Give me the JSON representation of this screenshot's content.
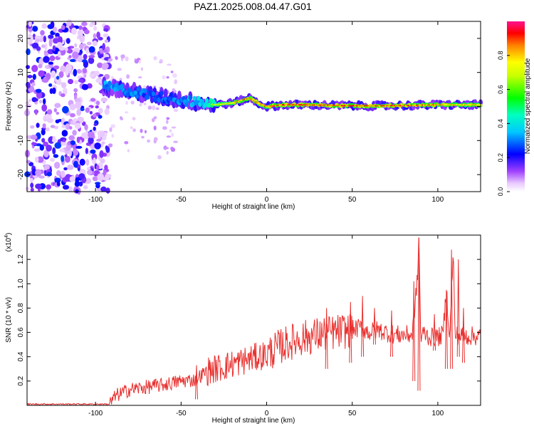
{
  "title": "PAZ1.2025.008.04.47.G01",
  "chart_data": [
    {
      "type": "heatmap",
      "xlabel": "Height of straight line (km)",
      "ylabel": "Frequency (Hz)",
      "xlim": [
        -140,
        125
      ],
      "ylim": [
        -25,
        25
      ],
      "x_ticks": [
        -100,
        -50,
        0,
        50,
        100
      ],
      "y_ticks": [
        -20,
        -10,
        0,
        10,
        20
      ],
      "colorbar": {
        "label": "Normalized spectral amplitude",
        "range": [
          0,
          1
        ],
        "ticks": [
          "0.0",
          "0.2",
          "0.4",
          "0.6",
          "0.8"
        ]
      },
      "ridge": {
        "x": [
          -95,
          -80,
          -65,
          -50,
          -40,
          -30,
          -20,
          -10,
          -5,
          0,
          10,
          25,
          40,
          60,
          80,
          100,
          125
        ],
        "frequency": [
          6,
          4.5,
          3,
          2,
          1.2,
          0.5,
          1,
          2.5,
          1,
          0,
          0.5,
          0.5,
          0.3,
          0.2,
          0.3,
          0.5,
          0.5
        ],
        "peak_amplitude": [
          0.5,
          0.45,
          0.4,
          0.45,
          0.55,
          0.75,
          0.85,
          0.95,
          0.9,
          0.9,
          0.95,
          0.95,
          0.95,
          0.95,
          0.95,
          0.9,
          0.85
        ]
      },
      "noise_region_x": [
        -140,
        -92
      ],
      "colors": [
        "#ff00ff",
        "#0000ff",
        "#00ffff",
        "#00ff00",
        "#ffff00",
        "#ff0000"
      ]
    },
    {
      "type": "line",
      "xlabel": "Height of straight line (km)",
      "ylabel": "SNR (10 * v/v)",
      "y_multiplier": "(x10",
      "y_multiplier_exp": "4",
      "y_multiplier_close": ")",
      "xlim": [
        -140,
        125
      ],
      "ylim": [
        0,
        1.4
      ],
      "x_ticks": [
        -100,
        -50,
        0,
        50,
        100
      ],
      "y_ticks": [
        "0.2",
        "0.4",
        "0.6",
        "0.8",
        "1.0",
        "1.2"
      ],
      "series": [
        {
          "color": "#e8302e",
          "x": [
            -140,
            -110,
            -92,
            -88,
            -80,
            -70,
            -60,
            -50,
            -42,
            -35,
            -30,
            -20,
            -10,
            0,
            10,
            20,
            30,
            40,
            50,
            55,
            60,
            65,
            70,
            75,
            80,
            85,
            88,
            89,
            90,
            92,
            95,
            100,
            103,
            105,
            107,
            109,
            110,
            115,
            120,
            125
          ],
          "values": [
            0.01,
            0.01,
            0.01,
            0.08,
            0.13,
            0.15,
            0.17,
            0.2,
            0.21,
            0.28,
            0.3,
            0.34,
            0.38,
            0.42,
            0.5,
            0.55,
            0.58,
            0.6,
            0.62,
            0.64,
            0.6,
            0.62,
            0.6,
            0.58,
            0.58,
            0.58,
            1.02,
            1.38,
            0.55,
            0.6,
            0.56,
            0.56,
            0.58,
            0.95,
            0.55,
            1.28,
            0.58,
            0.57,
            0.57,
            0.57
          ]
        }
      ],
      "spikes": [
        {
          "x": 89,
          "high": 1.38,
          "low": 0.12
        },
        {
          "x": 86,
          "high": 1.02,
          "low": 0.2
        },
        {
          "x": 105,
          "high": 0.95,
          "low": 0.3
        },
        {
          "x": 108,
          "high": 1.28,
          "low": 0.3
        },
        {
          "x": 112,
          "high": 1.2,
          "low": 0.4
        },
        {
          "x": 115,
          "high": 0.8,
          "low": 0.35
        },
        {
          "x": 98,
          "high": 0.75,
          "low": 0.45
        },
        {
          "x": 73,
          "high": 0.78,
          "low": 0.4
        },
        {
          "x": 63,
          "high": 0.8,
          "low": 0.5
        },
        {
          "x": 56,
          "high": 0.9,
          "low": 0.4
        },
        {
          "x": 49,
          "high": 0.85,
          "low": 0.35
        },
        {
          "x": 35,
          "high": 0.8,
          "low": 0.3
        },
        {
          "x": -41,
          "high": 0.33,
          "low": 0.05
        }
      ]
    }
  ]
}
